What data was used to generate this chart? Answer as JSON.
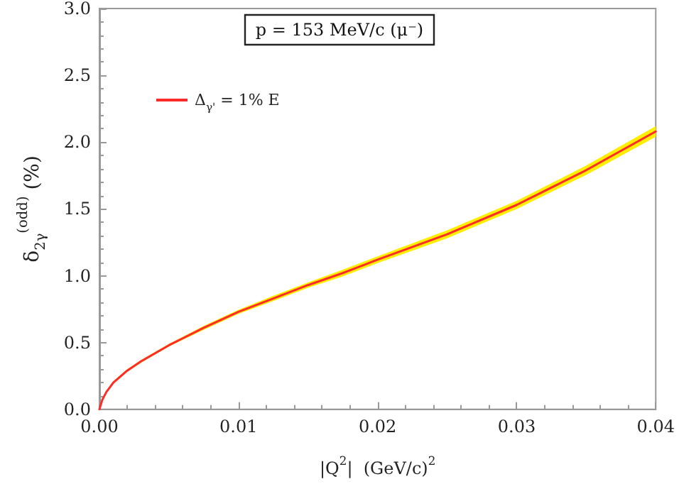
{
  "chart_data": {
    "type": "line",
    "xlabel": "|Q$^{2}$|  (GeV/c)$^{2}$",
    "ylabel": "δ$_{2γ}$$^{(odd)}$ (%)",
    "annotations": [
      "p = 153 MeV/c (μ⁻)"
    ],
    "x": [
      0,
      0.0002,
      0.0005,
      0.001,
      0.002,
      0.003,
      0.005,
      0.0075,
      0.01,
      0.0125,
      0.015,
      0.0175,
      0.02,
      0.025,
      0.03,
      0.035,
      0.04
    ],
    "series": [
      {
        "name": "Δ$_{γ'}$ = 1% E",
        "color": "#ff2a2a",
        "values": [
          0,
          0.07,
          0.13,
          0.2,
          0.29,
          0.36,
          0.48,
          0.61,
          0.73,
          0.83,
          0.93,
          1.02,
          1.12,
          1.31,
          1.53,
          1.79,
          2.08
        ],
        "lower": [
          0,
          0.065,
          0.125,
          0.19,
          0.28,
          0.35,
          0.47,
          0.595,
          0.715,
          0.81,
          0.91,
          0.995,
          1.095,
          1.28,
          1.5,
          1.755,
          2.04
        ],
        "upper": [
          0,
          0.075,
          0.135,
          0.21,
          0.3,
          0.37,
          0.49,
          0.625,
          0.745,
          0.85,
          0.95,
          1.045,
          1.145,
          1.34,
          1.56,
          1.825,
          2.12
        ]
      }
    ],
    "xlim": [
      0,
      0.04
    ],
    "xticks": [
      {
        "value": 0,
        "label": "0.00"
      },
      0.01,
      0.02,
      0.03,
      0.04
    ],
    "ylim": [
      0,
      3
    ],
    "yticks": [
      {
        "value": 0,
        "label": "0.0"
      },
      0.5,
      {
        "value": 1,
        "label": "1.0"
      },
      1.5,
      {
        "value": 2,
        "label": "2.0"
      },
      2.5,
      {
        "value": 3,
        "label": "3.0"
      }
    ],
    "grid": false,
    "legend": "top left",
    "marker": "none",
    "line_style": "solid"
  }
}
